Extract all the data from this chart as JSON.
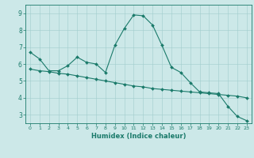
{
  "xlabel": "Humidex (Indice chaleur)",
  "ylabel": "",
  "background_color": "#cce8e8",
  "line_color": "#1a7a6a",
  "xlim": [
    -0.5,
    23.5
  ],
  "ylim": [
    2.5,
    9.5
  ],
  "yticks": [
    3,
    4,
    5,
    6,
    7,
    8,
    9
  ],
  "xticks": [
    0,
    1,
    2,
    3,
    4,
    5,
    6,
    7,
    8,
    9,
    10,
    11,
    12,
    13,
    14,
    15,
    16,
    17,
    18,
    19,
    20,
    21,
    22,
    23
  ],
  "line1_x": [
    0,
    1,
    2,
    3,
    4,
    5,
    6,
    7,
    8,
    9,
    10,
    11,
    12,
    13,
    14,
    15,
    16,
    17,
    18,
    19,
    20,
    21,
    22,
    23
  ],
  "line1_y": [
    6.7,
    6.3,
    5.6,
    5.6,
    5.9,
    6.4,
    6.1,
    6.0,
    5.5,
    7.1,
    8.1,
    8.9,
    8.85,
    8.3,
    7.1,
    5.8,
    5.5,
    4.9,
    4.35,
    4.3,
    4.25,
    3.5,
    2.9,
    2.65
  ],
  "line2_x": [
    0,
    1,
    2,
    3,
    4,
    5,
    6,
    7,
    8,
    9,
    10,
    11,
    12,
    13,
    14,
    15,
    16,
    17,
    18,
    19,
    20,
    21,
    22,
    23
  ],
  "line2_y": [
    5.7,
    5.6,
    5.55,
    5.45,
    5.4,
    5.3,
    5.2,
    5.1,
    5.0,
    4.9,
    4.8,
    4.7,
    4.65,
    4.55,
    4.5,
    4.45,
    4.4,
    4.35,
    4.3,
    4.25,
    4.2,
    4.15,
    4.1,
    4.0
  ],
  "xtick_fontsize": 4.5,
  "ytick_fontsize": 5.5,
  "xlabel_fontsize": 6.0
}
